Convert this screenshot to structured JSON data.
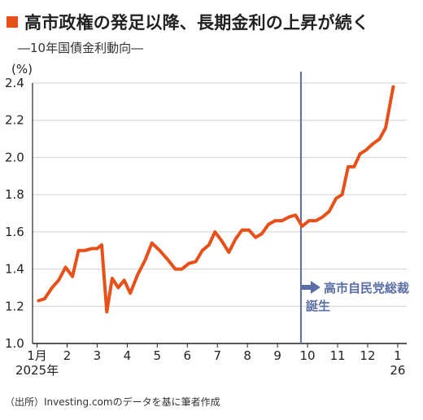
{
  "header": {
    "title": "高市政権の発足以降、長期金利の上昇が続く",
    "subtitle": "―10年国債金利動向―"
  },
  "source_note": "（出所）Investing.comのデータを基に筆者作成",
  "colors": {
    "line": "#e8501a",
    "marker": "#e8501a",
    "event": "#5a6ea6",
    "grid": "#d0d0d0",
    "axis": "#222222"
  },
  "chart_data": {
    "type": "line",
    "title": "高市政権の発足以降、長期金利の上昇が続く",
    "subtitle": "―10年国債金利動向―",
    "unit_label": "(%)",
    "ylim": [
      1.0,
      2.4
    ],
    "yticks": [
      1.0,
      1.2,
      1.4,
      1.6,
      1.8,
      2.0,
      2.2,
      2.4
    ],
    "xlim": [
      0.85,
      13.3
    ],
    "x_ticks": [
      {
        "x": 1,
        "label": "1月"
      },
      {
        "x": 2,
        "label": "2"
      },
      {
        "x": 3,
        "label": "3"
      },
      {
        "x": 4,
        "label": "4"
      },
      {
        "x": 5,
        "label": "5"
      },
      {
        "x": 6,
        "label": "6"
      },
      {
        "x": 7,
        "label": "7"
      },
      {
        "x": 8,
        "label": "8"
      },
      {
        "x": 9,
        "label": "9"
      },
      {
        "x": 10,
        "label": "10"
      },
      {
        "x": 11,
        "label": "11"
      },
      {
        "x": 12,
        "label": "12"
      },
      {
        "x": 13,
        "label": "1"
      }
    ],
    "x_sublabels": [
      {
        "x": 1,
        "label": "2025年"
      },
      {
        "x": 13,
        "label": "26"
      }
    ],
    "grid": "horizontal",
    "event": {
      "x": 9.78,
      "label_lines": [
        "高市自民党総裁",
        "誕生"
      ]
    },
    "series": [
      {
        "points": [
          [
            1.05,
            1.23
          ],
          [
            1.25,
            1.24
          ],
          [
            1.5,
            1.3
          ],
          [
            1.72,
            1.34
          ],
          [
            1.95,
            1.41
          ],
          [
            2.18,
            1.36
          ],
          [
            2.38,
            1.5
          ],
          [
            2.6,
            1.5
          ],
          [
            2.82,
            1.51
          ],
          [
            3.0,
            1.51
          ],
          [
            3.15,
            1.53
          ],
          [
            3.32,
            1.17
          ],
          [
            3.5,
            1.35
          ],
          [
            3.7,
            1.3
          ],
          [
            3.9,
            1.34
          ],
          [
            4.1,
            1.27
          ],
          [
            4.35,
            1.37
          ],
          [
            4.6,
            1.45
          ],
          [
            4.82,
            1.54
          ],
          [
            5.08,
            1.5
          ],
          [
            5.35,
            1.45
          ],
          [
            5.6,
            1.4
          ],
          [
            5.82,
            1.4
          ],
          [
            6.05,
            1.43
          ],
          [
            6.28,
            1.44
          ],
          [
            6.5,
            1.5
          ],
          [
            6.72,
            1.53
          ],
          [
            6.92,
            1.6
          ],
          [
            7.15,
            1.55
          ],
          [
            7.38,
            1.49
          ],
          [
            7.6,
            1.56
          ],
          [
            7.82,
            1.61
          ],
          [
            8.05,
            1.61
          ],
          [
            8.27,
            1.57
          ],
          [
            8.48,
            1.59
          ],
          [
            8.7,
            1.64
          ],
          [
            8.92,
            1.66
          ],
          [
            9.15,
            1.66
          ],
          [
            9.38,
            1.68
          ],
          [
            9.6,
            1.69
          ],
          [
            9.82,
            1.63
          ],
          [
            10.05,
            1.66
          ],
          [
            10.28,
            1.66
          ],
          [
            10.5,
            1.68
          ],
          [
            10.72,
            1.71
          ],
          [
            10.95,
            1.78
          ],
          [
            11.15,
            1.8
          ],
          [
            11.35,
            1.95
          ],
          [
            11.55,
            1.95
          ],
          [
            11.75,
            2.02
          ],
          [
            11.95,
            2.04
          ],
          [
            12.15,
            2.07
          ],
          [
            12.4,
            2.1
          ],
          [
            12.6,
            2.16
          ],
          [
            12.85,
            2.38
          ]
        ]
      }
    ]
  }
}
